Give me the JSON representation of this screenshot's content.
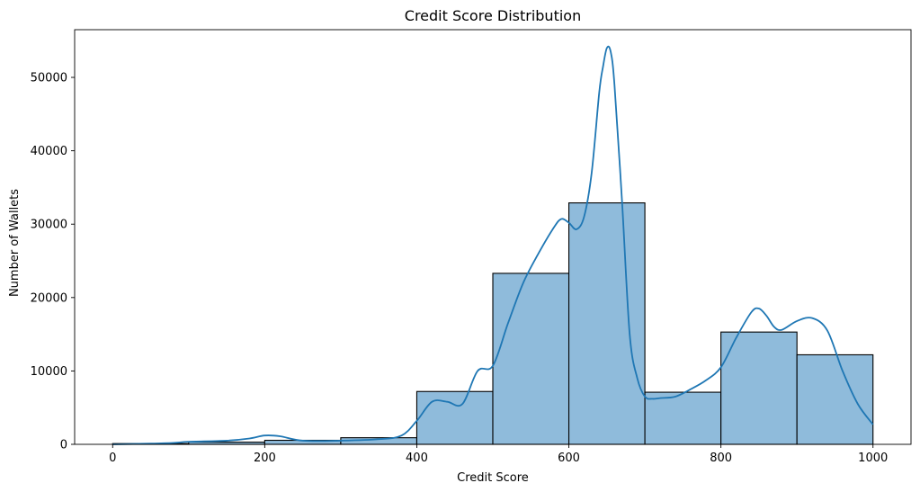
{
  "chart_data": {
    "type": "bar",
    "title": "Credit Score Distribution",
    "xlabel": "Credit Score",
    "ylabel": "Number of Wallets",
    "xlim": [
      -50,
      1050
    ],
    "ylim": [
      0,
      56500
    ],
    "xticks": [
      0,
      200,
      400,
      600,
      800,
      1000
    ],
    "yticks": [
      0,
      10000,
      20000,
      30000,
      40000,
      50000
    ],
    "bins": [
      {
        "x0": 0,
        "x1": 100,
        "value": 100
      },
      {
        "x0": 100,
        "x1": 200,
        "value": 300
      },
      {
        "x0": 200,
        "x1": 300,
        "value": 550
      },
      {
        "x0": 300,
        "x1": 400,
        "value": 900
      },
      {
        "x0": 400,
        "x1": 500,
        "value": 7200
      },
      {
        "x0": 500,
        "x1": 600,
        "value": 23300
      },
      {
        "x0": 600,
        "x1": 700,
        "value": 32900
      },
      {
        "x0": 700,
        "x1": 800,
        "value": 7100
      },
      {
        "x0": 800,
        "x1": 900,
        "value": 15300
      },
      {
        "x0": 900,
        "x1": 1000,
        "value": 12200
      }
    ],
    "kde": {
      "x": [
        0,
        50,
        80,
        100,
        150,
        180,
        200,
        220,
        250,
        300,
        350,
        380,
        400,
        420,
        440,
        460,
        480,
        500,
        520,
        540,
        560,
        580,
        590,
        600,
        610,
        620,
        630,
        640,
        645,
        650,
        655,
        660,
        670,
        680,
        690,
        700,
        710,
        720,
        740,
        760,
        780,
        800,
        820,
        840,
        850,
        860,
        870,
        880,
        900,
        920,
        940,
        960,
        980,
        1000
      ],
      "y": [
        0,
        100,
        200,
        350,
        500,
        800,
        1200,
        1100,
        500,
        500,
        700,
        1200,
        3200,
        5800,
        5800,
        5500,
        10000,
        10700,
        16500,
        22000,
        26000,
        29500,
        30700,
        30200,
        29300,
        31000,
        37000,
        48000,
        51500,
        54000,
        53500,
        49000,
        33000,
        15000,
        9000,
        6500,
        6200,
        6300,
        6500,
        7500,
        8700,
        10500,
        14500,
        18000,
        18500,
        17500,
        16000,
        15600,
        16800,
        17200,
        15500,
        10000,
        5500,
        2700
      ]
    },
    "colors": {
      "bar_fill": "#8fbbdb",
      "bar_edge": "#000000",
      "kde_line": "#1f77b4"
    }
  }
}
